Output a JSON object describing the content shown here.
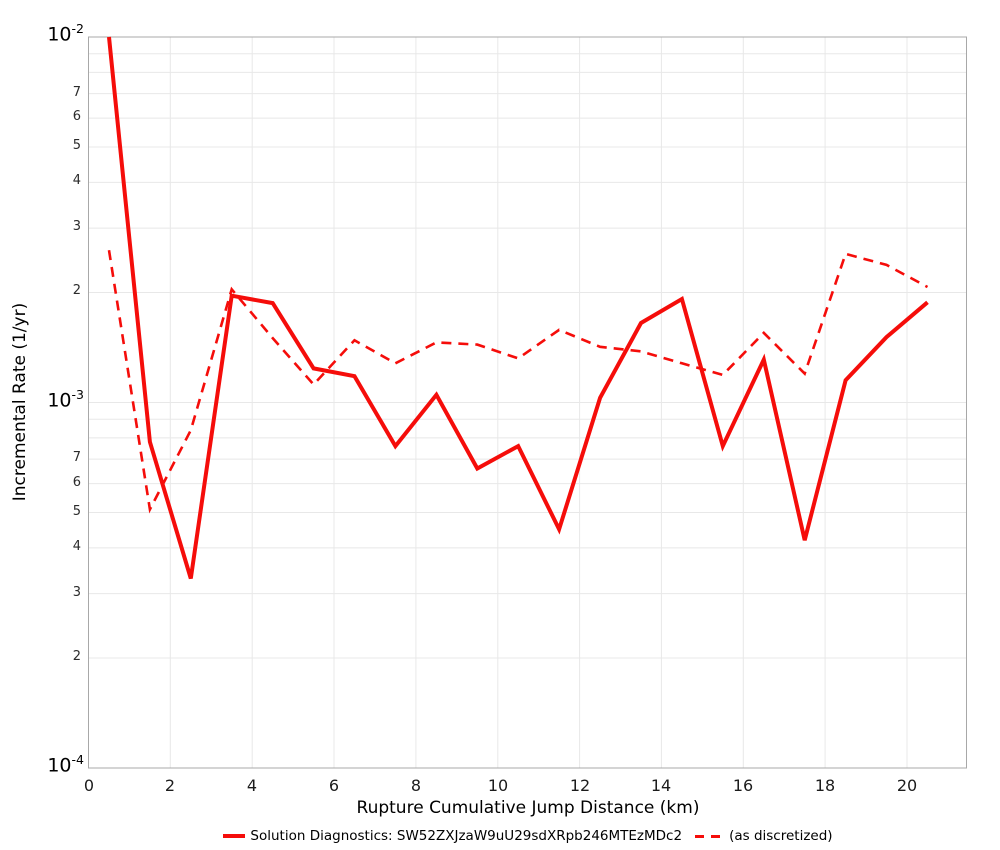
{
  "chart_data": {
    "type": "line",
    "title": "",
    "xlabel": "Rupture Cumulative Jump Distance (km)",
    "ylabel": "Incremental Rate (1/yr)",
    "grid": true,
    "legend_position": "bottom",
    "x_axis": {
      "min": 0,
      "max": 21.45,
      "ticks": [
        0,
        2,
        4,
        6,
        8,
        10,
        12,
        14,
        16,
        18,
        20
      ]
    },
    "y_axis": {
      "scale": "log",
      "min": 0.0001,
      "max": 0.01,
      "major_ticks": [
        {
          "mantissa": "10",
          "exponent": "-2",
          "value": 0.01
        },
        {
          "mantissa": "10",
          "exponent": "-3",
          "value": 0.001
        },
        {
          "mantissa": "10",
          "exponent": "-4",
          "value": 0.0001
        }
      ],
      "minor_labeled_digits": [
        7,
        6,
        5,
        4,
        3,
        2
      ],
      "minor_decade_exponents": [
        -3,
        -4
      ]
    },
    "x": [
      0.5,
      1.5,
      2.5,
      3.5,
      4.5,
      5.5,
      6.5,
      7.5,
      8.5,
      9.5,
      10.5,
      11.5,
      12.5,
      13.5,
      14.5,
      15.5,
      16.5,
      17.5,
      18.5,
      19.5,
      20.5
    ],
    "series": [
      {
        "name": "Solution Diagnostics: SW52ZXJzaW9uU29sdXRpb246MTEzMDc2",
        "style": "solid",
        "color": "#f50d0a",
        "values": [
          0.01,
          0.00078,
          0.00033,
          0.00196,
          0.00187,
          0.00124,
          0.00118,
          0.00076,
          0.00105,
          0.00066,
          0.00076,
          0.00045,
          0.00103,
          0.00165,
          0.00192,
          0.00076,
          0.00131,
          0.00042,
          0.00115,
          0.00151,
          0.00188
        ]
      },
      {
        "name": "(as discretized)",
        "style": "dashed",
        "color": "#f50d0a",
        "values": [
          0.00261,
          0.00051,
          0.00084,
          0.00204,
          0.0015,
          0.00112,
          0.00148,
          0.00128,
          0.00146,
          0.00144,
          0.00132,
          0.00158,
          0.00142,
          0.00138,
          0.00128,
          0.00119,
          0.00155,
          0.0012,
          0.00255,
          0.00238,
          0.00207
        ]
      }
    ]
  },
  "colors": {
    "series_red": "#f50d0a",
    "gridline": "#e8e8e8",
    "plot_border": "#a8a8a8",
    "text": "#000000"
  }
}
